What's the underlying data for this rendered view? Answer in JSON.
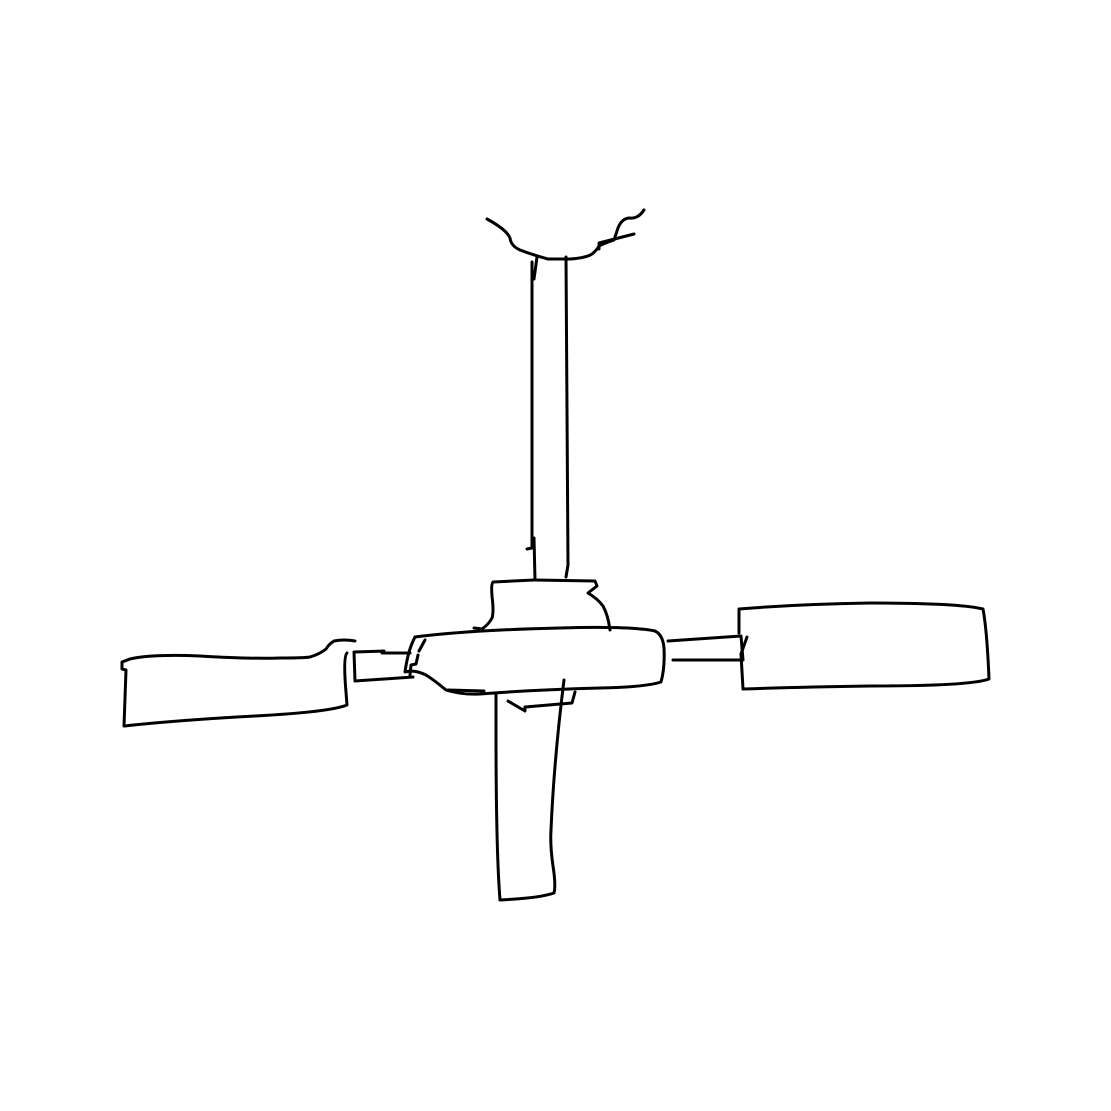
{
  "drawing": {
    "subject": "ceiling-fan-sketch",
    "stroke_color": "#000000",
    "background_color": "#ffffff"
  }
}
